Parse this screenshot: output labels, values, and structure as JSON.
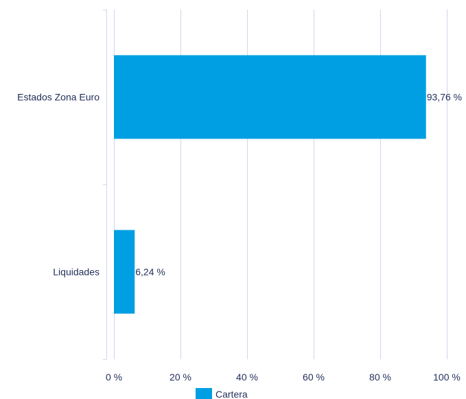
{
  "chart_data": {
    "type": "bar",
    "orientation": "horizontal",
    "categories": [
      "Estados Zona Euro",
      "Liquidades"
    ],
    "series": [
      {
        "name": "Cartera",
        "values": [
          93.76,
          6.24
        ],
        "value_labels": [
          "93,76 %",
          "6,24 %"
        ],
        "color": "#009fe3"
      }
    ],
    "xlim": [
      0,
      100
    ],
    "x_ticks": [
      0,
      20,
      40,
      60,
      80,
      100
    ],
    "x_tick_labels": [
      "0 %",
      "20 %",
      "40 %",
      "60 %",
      "80 %",
      "100 %"
    ],
    "grid": "vertical",
    "legend_position": "bottom"
  },
  "colors": {
    "bar": "#009fe3",
    "grid": "#ccd6eb",
    "text": "#1f2d5a"
  }
}
